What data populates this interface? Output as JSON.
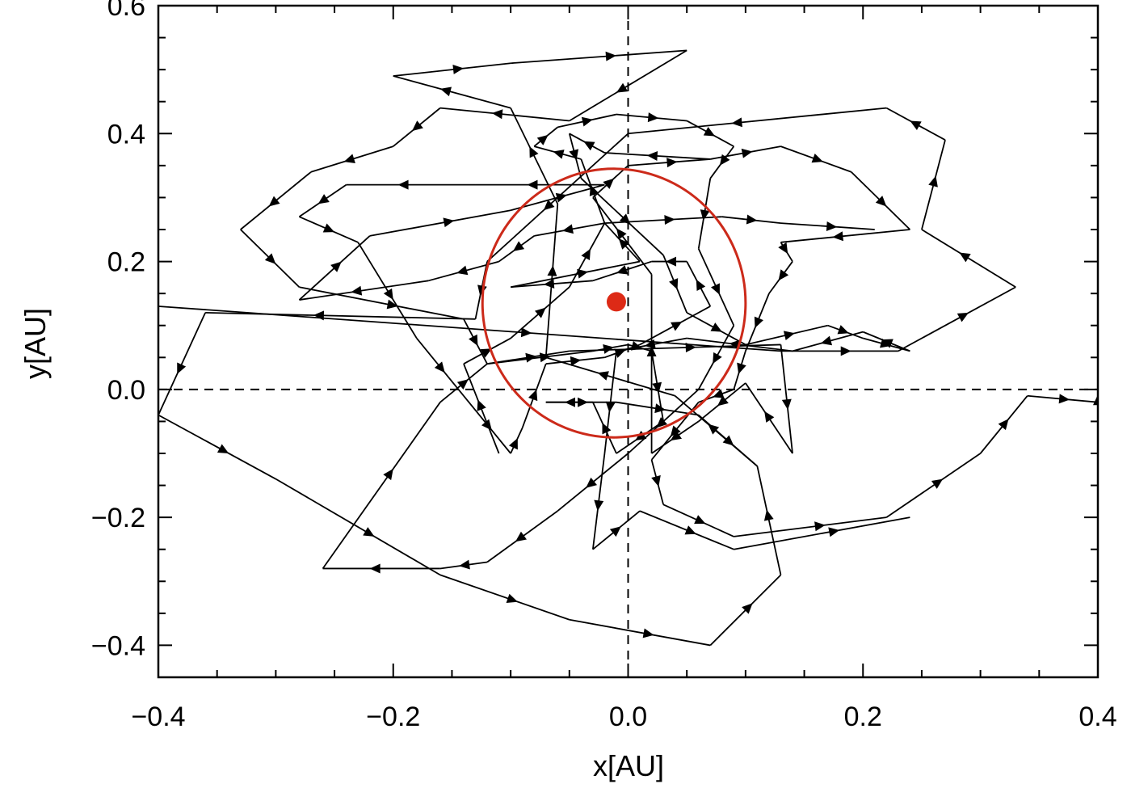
{
  "chart_data": {
    "type": "line",
    "xlabel": "x[AU]",
    "ylabel": "y[AU]",
    "xlim": [
      -0.4,
      0.4
    ],
    "ylim": [
      -0.45,
      0.6
    ],
    "x_ticks": [
      {
        "value": -0.4,
        "label": "−0.4"
      },
      {
        "value": -0.2,
        "label": "−0.2"
      },
      {
        "value": 0.0,
        "label": "0.0"
      },
      {
        "value": 0.2,
        "label": "0.2"
      },
      {
        "value": 0.4,
        "label": "0.4"
      }
    ],
    "y_ticks": [
      {
        "value": -0.4,
        "label": "−0.4"
      },
      {
        "value": -0.2,
        "label": "−0.2"
      },
      {
        "value": 0.0,
        "label": "0.0"
      },
      {
        "value": 0.2,
        "label": "0.2"
      },
      {
        "value": 0.4,
        "label": "0.4"
      },
      {
        "value": 0.6,
        "label": "0.6"
      }
    ],
    "minor_x_step": 0.05,
    "minor_y_step": 0.05,
    "reference_lines": {
      "x": 0.0,
      "y": 0.0,
      "style": "dashed"
    },
    "colors": {
      "trajectory": "#000000",
      "circle": "#cc2a1a",
      "point": "#dd2a16"
    },
    "circle": {
      "center": [
        -0.012,
        0.135
      ],
      "radius_x": 0.112,
      "radius_y": 0.21
    },
    "center_point": [
      -0.01,
      0.137
    ],
    "series": [
      {
        "color": "#000000",
        "style": "line-with-direction-arrows",
        "points": [
          [
            -0.4,
            0.13
          ],
          [
            0.13,
            0.06
          ],
          [
            0.23,
            0.06
          ],
          [
            0.33,
            0.16
          ],
          [
            0.25,
            0.25
          ],
          [
            0.27,
            0.39
          ],
          [
            0.22,
            0.44
          ],
          [
            0.0,
            0.4
          ],
          [
            -0.12,
            0.2
          ],
          [
            -0.13,
            0.11
          ],
          [
            -0.36,
            0.12
          ],
          [
            -0.4,
            -0.04
          ],
          [
            -0.3,
            -0.14
          ],
          [
            -0.16,
            -0.29
          ],
          [
            -0.05,
            -0.36
          ],
          [
            0.07,
            -0.4
          ],
          [
            0.13,
            -0.29
          ],
          [
            0.11,
            -0.12
          ],
          [
            0.04,
            -0.01
          ],
          [
            -0.07,
            0.05
          ],
          [
            -0.06,
            0.29
          ],
          [
            -0.1,
            0.44
          ],
          [
            -0.2,
            0.49
          ],
          [
            -0.1,
            0.51
          ],
          [
            0.05,
            0.53
          ],
          [
            -0.05,
            0.42
          ],
          [
            -0.16,
            0.44
          ],
          [
            -0.2,
            0.38
          ],
          [
            -0.27,
            0.34
          ],
          [
            -0.33,
            0.25
          ],
          [
            -0.28,
            0.16
          ],
          [
            -0.14,
            0.11
          ],
          [
            -0.12,
            0.04
          ],
          [
            -0.05,
            0.06
          ],
          [
            0.13,
            0.07
          ],
          [
            0.14,
            -0.1
          ],
          [
            0.1,
            0.01
          ],
          [
            0.06,
            -0.05
          ],
          [
            0.02,
            -0.1
          ],
          [
            0.02,
            0.18
          ],
          [
            -0.03,
            0.3
          ],
          [
            0.0,
            0.35
          ],
          [
            0.07,
            0.36
          ],
          [
            0.13,
            0.38
          ],
          [
            0.19,
            0.34
          ],
          [
            0.24,
            0.25
          ],
          [
            0.13,
            0.23
          ],
          [
            0.14,
            0.2
          ],
          [
            0.12,
            0.15
          ],
          [
            0.1,
            0.06
          ],
          [
            0.09,
            0.0
          ],
          [
            0.06,
            -0.02
          ],
          [
            0.02,
            -0.11
          ],
          [
            0.03,
            -0.18
          ],
          [
            0.09,
            -0.23
          ],
          [
            0.22,
            -0.2
          ],
          [
            0.3,
            -0.1
          ],
          [
            0.34,
            -0.01
          ],
          [
            0.4,
            -0.02
          ],
          [
            0.4,
            0.0
          ]
        ]
      },
      {
        "color": "#000000",
        "style": "line-with-direction-arrows",
        "points": [
          [
            -0.02,
            0.26
          ],
          [
            -0.08,
            0.24
          ],
          [
            -0.11,
            0.2
          ],
          [
            -0.17,
            0.17
          ],
          [
            -0.28,
            0.14
          ],
          [
            -0.22,
            0.24
          ],
          [
            -0.1,
            0.28
          ],
          [
            -0.02,
            0.32
          ],
          [
            -0.13,
            0.32
          ],
          [
            -0.24,
            0.32
          ],
          [
            -0.28,
            0.27
          ],
          [
            -0.23,
            0.23
          ],
          [
            -0.18,
            0.08
          ],
          [
            -0.14,
            -0.01
          ],
          [
            -0.1,
            -0.1
          ],
          [
            -0.09,
            -0.06
          ],
          [
            -0.07,
            0.04
          ],
          [
            -0.02,
            0.05
          ],
          [
            0.01,
            0.07
          ],
          [
            0.07,
            0.13
          ],
          [
            0.05,
            0.2
          ],
          [
            0.02,
            0.2
          ],
          [
            -0.03,
            0.17
          ],
          [
            -0.1,
            0.16
          ],
          [
            0.01,
            0.2
          ],
          [
            -0.02,
            0.26
          ],
          [
            0.08,
            0.27
          ],
          [
            0.13,
            0.26
          ],
          [
            0.21,
            0.25
          ]
        ]
      },
      {
        "color": "#000000",
        "style": "line-with-direction-arrows",
        "points": [
          [
            -0.11,
            -0.1
          ],
          [
            -0.14,
            0.04
          ],
          [
            -0.1,
            0.08
          ],
          [
            -0.05,
            0.16
          ],
          [
            -0.02,
            0.26
          ],
          [
            -0.04,
            0.36
          ],
          [
            -0.08,
            0.38
          ],
          [
            -0.06,
            0.41
          ],
          [
            -0.01,
            0.43
          ],
          [
            0.05,
            0.42
          ],
          [
            0.09,
            0.38
          ],
          [
            0.07,
            0.33
          ],
          [
            0.06,
            0.22
          ],
          [
            0.09,
            0.1
          ],
          [
            0.06,
            0.0
          ],
          [
            0.0,
            -0.1
          ],
          [
            -0.06,
            -0.19
          ],
          [
            -0.12,
            -0.27
          ],
          [
            -0.16,
            -0.28
          ],
          [
            -0.26,
            -0.28
          ],
          [
            -0.16,
            -0.02
          ],
          [
            -0.12,
            0.04
          ],
          [
            -0.03,
            0.06
          ],
          [
            0.0,
            0.07
          ],
          [
            0.02,
            0.06
          ],
          [
            0.03,
            -0.05
          ],
          [
            -0.01,
            -0.1
          ],
          [
            -0.03,
            -0.02
          ],
          [
            -0.07,
            -0.02
          ],
          [
            -0.01,
            -0.02
          ],
          [
            0.06,
            -0.04
          ],
          [
            0.11,
            -0.12
          ]
        ]
      },
      {
        "color": "#000000",
        "style": "line-with-direction-arrows",
        "points": [
          [
            0.07,
            0.36
          ],
          [
            -0.02,
            0.37
          ],
          [
            -0.05,
            0.4
          ],
          [
            -0.04,
            0.33
          ],
          [
            0.03,
            0.21
          ],
          [
            0.05,
            0.12
          ],
          [
            0.1,
            0.07
          ],
          [
            0.17,
            0.1
          ],
          [
            0.2,
            0.08
          ],
          [
            0.24,
            0.06
          ],
          [
            0.2,
            0.09
          ],
          [
            0.14,
            0.06
          ],
          [
            0.05,
            0.08
          ],
          [
            -0.01,
            0.06
          ],
          [
            -0.02,
            -0.1
          ],
          [
            -0.03,
            -0.25
          ],
          [
            0.01,
            -0.19
          ],
          [
            0.09,
            -0.25
          ],
          [
            0.24,
            -0.2
          ]
        ]
      }
    ]
  }
}
